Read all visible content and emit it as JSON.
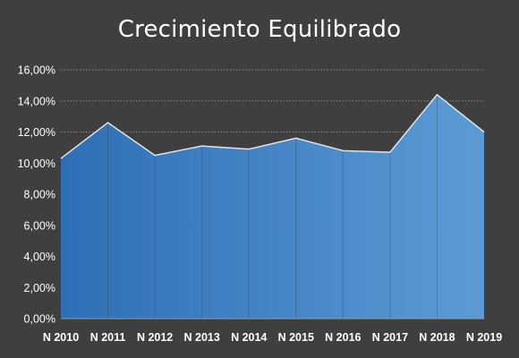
{
  "chart_data": {
    "type": "area",
    "title": "Crecimiento Equilibrado",
    "categories": [
      "N 2010",
      "N 2011",
      "N 2012",
      "N 2013",
      "N 2014",
      "N 2015",
      "N 2016",
      "N 2017",
      "N 2018",
      "N 2019"
    ],
    "series": [
      {
        "values": [
          10.3,
          12.6,
          10.5,
          11.1,
          10.9,
          11.6,
          10.8,
          10.7,
          14.4,
          12.0
        ]
      }
    ],
    "ylim": [
      0,
      16
    ],
    "ytick_step": 2,
    "ytick_labels": [
      "0,00%",
      "2,00%",
      "4,00%",
      "6,00%",
      "8,00%",
      "10,00%",
      "12,00%",
      "14,00%",
      "16,00%"
    ],
    "grid": true,
    "colors": {
      "background": "#3f3f3f",
      "area_start": "#2e6fb5",
      "area_end": "#5b9bd5",
      "line": "#d9e6f4",
      "grid": "#8c8c8c",
      "text": "#ffffff"
    }
  }
}
